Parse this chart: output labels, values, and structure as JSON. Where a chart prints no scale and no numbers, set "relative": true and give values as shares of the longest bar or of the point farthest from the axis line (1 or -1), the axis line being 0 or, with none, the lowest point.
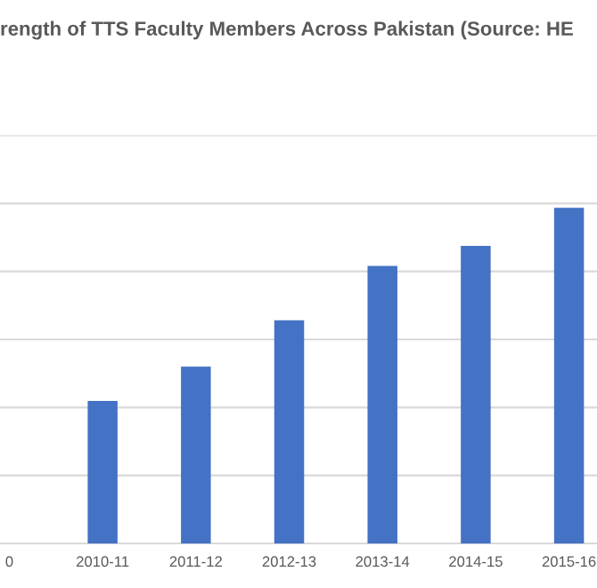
{
  "chart_data": {
    "type": "bar",
    "title": "rength of TTS Faculty Members Across Pakistan (Source: HE",
    "categories": [
      "0",
      "2010-11",
      "2011-12",
      "2012-13",
      "2013-14",
      "2014-15",
      "2015-16"
    ],
    "values": [
      null,
      0.425,
      0.527,
      0.665,
      0.827,
      0.887,
      1.0
    ],
    "color": "#4472c4",
    "relative": true,
    "grid": "y"
  }
}
